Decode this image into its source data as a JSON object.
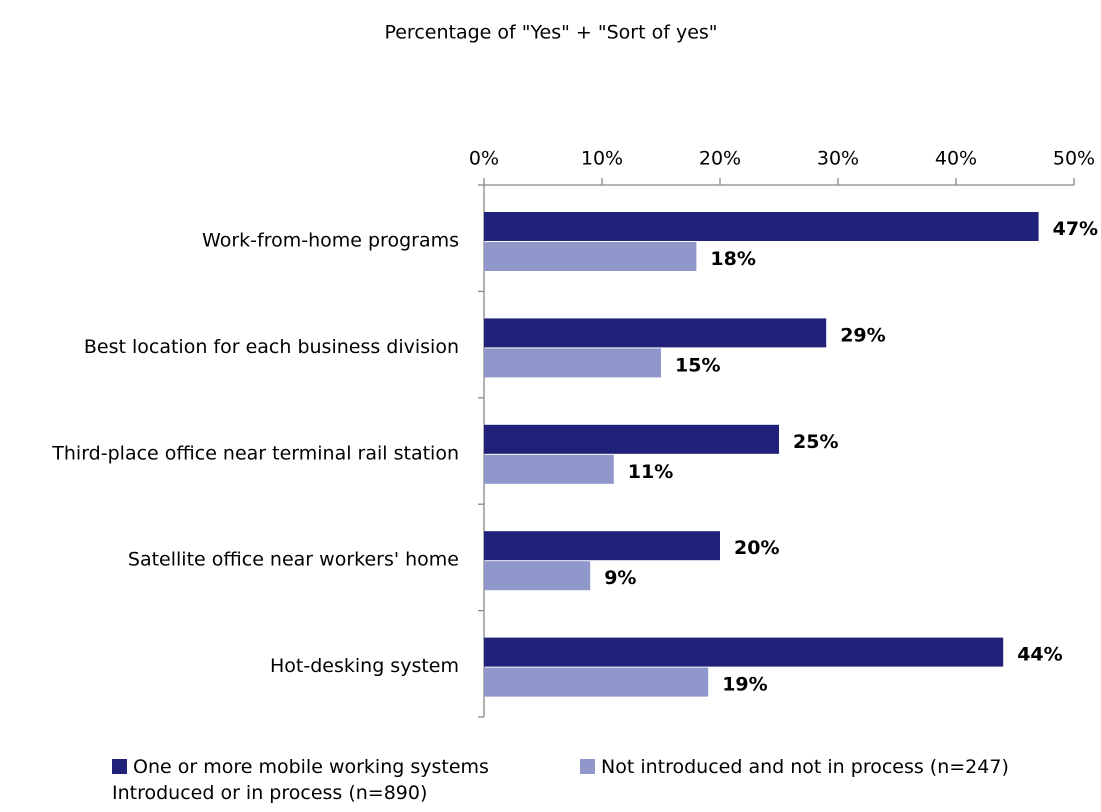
{
  "chart_data": {
    "type": "bar",
    "orientation": "horizontal",
    "title": "Percentage of \"Yes\" + \"Sort of yes\"",
    "categories": [
      "Work-from-home programs",
      "Best location for each business division",
      "Third-place office near terminal rail station",
      "Satellite office near workers' home",
      "Hot-desking system"
    ],
    "series": [
      {
        "name": "One or more mobile working systems Introduced or in process (n=890)",
        "color": "#1f2278",
        "values": [
          47,
          29,
          25,
          20,
          44
        ],
        "value_labels": [
          "47%",
          "29%",
          "25%",
          "20%",
          "44%"
        ]
      },
      {
        "name": "Not introduced and not in process (n=247)",
        "color": "#8f97cb",
        "values": [
          18,
          15,
          11,
          9,
          19
        ],
        "value_labels": [
          "18%",
          "15%",
          "11%",
          "9%",
          "19%"
        ]
      }
    ],
    "xlim": [
      0,
      50
    ],
    "xticks": [
      {
        "value": 0,
        "label": "0%"
      },
      {
        "value": 10,
        "label": "10%"
      },
      {
        "value": 20,
        "label": "20%"
      },
      {
        "value": 30,
        "label": "30%"
      },
      {
        "value": 40,
        "label": "40%"
      },
      {
        "value": 50,
        "label": "50%"
      }
    ],
    "legend": "bottom"
  }
}
